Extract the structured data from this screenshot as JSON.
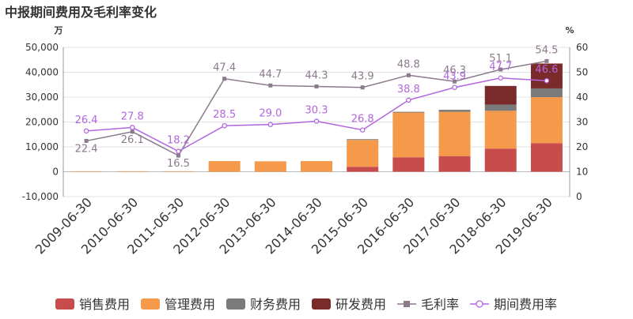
{
  "title": "中报期间费用及毛利率变化",
  "chart_data": {
    "type": "bar",
    "categories": [
      "2009-06-30",
      "2010-06-30",
      "2011-06-30",
      "2012-06-30",
      "2013-06-30",
      "2014-06-30",
      "2015-06-30",
      "2016-06-30",
      "2017-06-30",
      "2018-06-30",
      "2019-06-30"
    ],
    "left_unit": "万",
    "right_unit": "%",
    "ylim": [
      -10000,
      50000
    ],
    "yticks": [
      -10000,
      0,
      10000,
      20000,
      30000,
      40000,
      50000
    ],
    "y2lim": [
      0,
      60
    ],
    "y2ticks": [
      0,
      10,
      20,
      30,
      40,
      50,
      60
    ],
    "grid": true,
    "legend_position": "bottom",
    "series": [
      {
        "name": "销售费用",
        "kind": "bar",
        "axis": "left",
        "color": "#c94c4c",
        "values": [
          0,
          0,
          0,
          0,
          0,
          0,
          2000,
          5800,
          6300,
          9300,
          11500
        ]
      },
      {
        "name": "管理费用",
        "kind": "bar",
        "axis": "left",
        "color": "#f59a4b",
        "values": [
          200,
          200,
          200,
          4300,
          4200,
          4300,
          10800,
          18000,
          17800,
          15200,
          18500
        ]
      },
      {
        "name": "财务费用",
        "kind": "bar",
        "axis": "left",
        "color": "#7a7a7a",
        "values": [
          0,
          0,
          0,
          0,
          0,
          0,
          300,
          300,
          800,
          2500,
          3500
        ]
      },
      {
        "name": "研发费用",
        "kind": "bar",
        "axis": "left",
        "color": "#7b2a2a",
        "values": [
          0,
          0,
          0,
          0,
          0,
          0,
          0,
          0,
          0,
          7500,
          10000
        ]
      },
      {
        "name": "毛利率",
        "kind": "line",
        "axis": "right",
        "color": "#8b7a8b",
        "marker": "square",
        "values": [
          22.4,
          26.1,
          16.5,
          47.4,
          44.7,
          44.3,
          43.9,
          48.8,
          46.3,
          51.1,
          54.5
        ]
      },
      {
        "name": "期间费用率",
        "kind": "line",
        "axis": "right",
        "color": "#b266e0",
        "marker": "circle",
        "values": [
          26.4,
          27.8,
          18.2,
          28.5,
          29.0,
          30.3,
          26.8,
          38.8,
          43.9,
          47.7,
          46.6
        ]
      }
    ]
  }
}
